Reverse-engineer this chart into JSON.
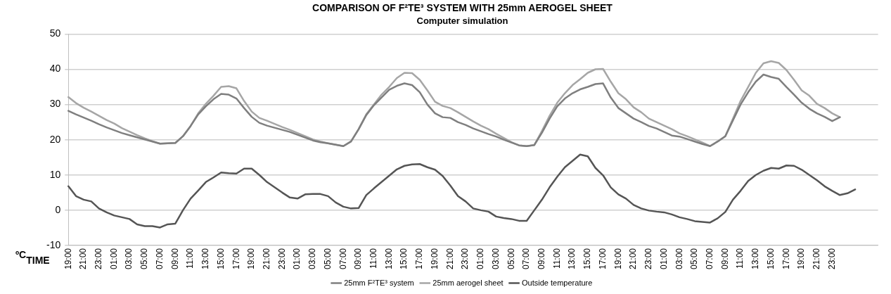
{
  "chart_data": {
    "type": "line",
    "title": "COMPARISON OF F²TE³ SYSTEM WITH 25mm AEROGEL SHEET",
    "subtitle": "Computer simulation",
    "xlabel": "TIME",
    "ylabel": "ºC",
    "categories": [
      "19:00",
      null,
      "21:00",
      null,
      "23:00",
      null,
      "01:00",
      null,
      "03:00",
      null,
      "05:00",
      null,
      "07:00",
      null,
      "09:00",
      null,
      "11:00",
      null,
      "13:00",
      null,
      "15:00",
      null,
      "17:00",
      null,
      "19:00",
      null,
      "21:00",
      null,
      "23:00",
      null,
      "01:00",
      null,
      "03:00",
      null,
      "05:00",
      null,
      "07:00",
      null,
      "09:00",
      null,
      "11:00",
      null,
      "13:00",
      null,
      "15:00",
      null,
      "17:00",
      null,
      "19:00",
      null,
      "21:00",
      null,
      "23:00",
      null,
      "01:00",
      null,
      "03:00",
      null,
      "05:00",
      null,
      "07:00",
      null,
      "09:00",
      null,
      "11:00",
      null,
      "13:00",
      null,
      "15:00",
      null,
      "17:00",
      null,
      "19:00",
      null,
      "21:00",
      null,
      "23:00",
      null,
      "01:00",
      null,
      "03:00",
      null,
      "05:00",
      null,
      "07:00",
      null,
      "09:00",
      null,
      "11:00",
      null,
      "13:00",
      null,
      "15:00",
      null,
      "17:00",
      null,
      "19:00",
      null,
      "21:00",
      null,
      "23:00",
      null,
      null,
      null,
      null,
      null,
      null
    ],
    "series": [
      {
        "name": "25mm F²TE³ system",
        "color": "#7f7f7f",
        "values": [
          28.2,
          27.2,
          26.3,
          25.4,
          24.4,
          23.5,
          22.7,
          21.9,
          21.3,
          20.7,
          20.1,
          19.5,
          18.9,
          19.0,
          19.1,
          21,
          23.9,
          27.2,
          29.5,
          31.5,
          33,
          32.8,
          31.7,
          29,
          26.5,
          24.8,
          24,
          23.4,
          22.8,
          22.2,
          21.4,
          20.6,
          19.8,
          19.3,
          19,
          18.6,
          18.2,
          19.5,
          23,
          27,
          29.8,
          32,
          34.2,
          35.3,
          36,
          35.5,
          33.5,
          30,
          27.5,
          26.4,
          26.2,
          25,
          24.2,
          23.2,
          22.4,
          21.6,
          20.9,
          20,
          19.2,
          18.4,
          18.2,
          18.5,
          22,
          26,
          29.5,
          31.7,
          33.2,
          34.3,
          35,
          35.8,
          36,
          32,
          29,
          27.5,
          26,
          25,
          23.9,
          23.2,
          22.2,
          21.2,
          20.9,
          20.2,
          19.5,
          18.8,
          18.2,
          19.5,
          21,
          25.5,
          30,
          33.5,
          36.5,
          38.5,
          37.8,
          37.3,
          35,
          32.8,
          30.5,
          28.8,
          27.5,
          26.5,
          25.3,
          26.4,
          null,
          null,
          null,
          null,
          null
        ]
      },
      {
        "name": "25mm aerogel sheet",
        "color": "#a6a6a6",
        "values": [
          32.1,
          30.4,
          29.1,
          28,
          26.8,
          25.6,
          24.6,
          23.3,
          22.3,
          21.3,
          20.4,
          19.6,
          18.9,
          19,
          19.1,
          21,
          23.9,
          27.5,
          30.2,
          32.5,
          35,
          35.2,
          34.6,
          31,
          28,
          26.2,
          25.4,
          24.5,
          23.6,
          22.8,
          21.9,
          21,
          20.1,
          19.5,
          19,
          18.6,
          18.2,
          19.5,
          23,
          27.2,
          30,
          32.8,
          35,
          37.5,
          39,
          38.9,
          37,
          34,
          30.8,
          29.6,
          29,
          27.8,
          26.5,
          25.2,
          24,
          23,
          21.7,
          20.5,
          19.3,
          18.4,
          18.2,
          18.5,
          22.5,
          26.8,
          30.5,
          33.2,
          35.5,
          37.2,
          39,
          40,
          40.1,
          36.5,
          33.2,
          31.5,
          29.2,
          27.8,
          26,
          25,
          24,
          23,
          21.8,
          21,
          20.1,
          19.2,
          18.2,
          19.5,
          21,
          26,
          31,
          35,
          39,
          41.7,
          42.3,
          41.8,
          39.8,
          37,
          34,
          32.5,
          30.2,
          29,
          27.5,
          26.4,
          null,
          null,
          null,
          null,
          null
        ]
      },
      {
        "name": "Outside temperature",
        "color": "#555555",
        "values": [
          6.8,
          4,
          3,
          2.5,
          0.5,
          -0.6,
          -1.5,
          -2,
          -2.5,
          -4,
          -4.5,
          -4.5,
          -4.9,
          -4,
          -3.8,
          0,
          3.3,
          5.6,
          8,
          9.3,
          10.7,
          10.5,
          10.4,
          11.8,
          11.8,
          10,
          8,
          6.5,
          5,
          3.6,
          3.3,
          4.5,
          4.6,
          4.6,
          4,
          2.2,
          1,
          0.5,
          0.6,
          4.3,
          6.2,
          8,
          9.8,
          11.6,
          12.6,
          13,
          13.1,
          12.2,
          11.5,
          9.7,
          7,
          4,
          2.5,
          0.5,
          0,
          -0.4,
          -1.8,
          -2.2,
          -2.5,
          -3,
          -3,
          0,
          3,
          6.5,
          9.5,
          12.2,
          14,
          15.8,
          15.3,
          12,
          9.9,
          6.5,
          4.5,
          3.3,
          1.5,
          0.5,
          -0.1,
          -0.4,
          -0.6,
          -1.2,
          -2,
          -2.5,
          -3.1,
          -3.3,
          -3.5,
          -2.3,
          -0.5,
          3,
          5.5,
          8.3,
          10,
          11.2,
          12,
          11.8,
          12.7,
          12.6,
          11.5,
          10,
          8.5,
          6.8,
          5.5,
          4.3,
          4.8,
          5.9,
          null,
          null,
          null
        ]
      }
    ],
    "ylim": [
      -10,
      50
    ],
    "yticks": [
      -10,
      0,
      10,
      20,
      30,
      40,
      50
    ],
    "grid": "y",
    "legend": "bottom",
    "marker": "none",
    "line_style": "solid"
  }
}
